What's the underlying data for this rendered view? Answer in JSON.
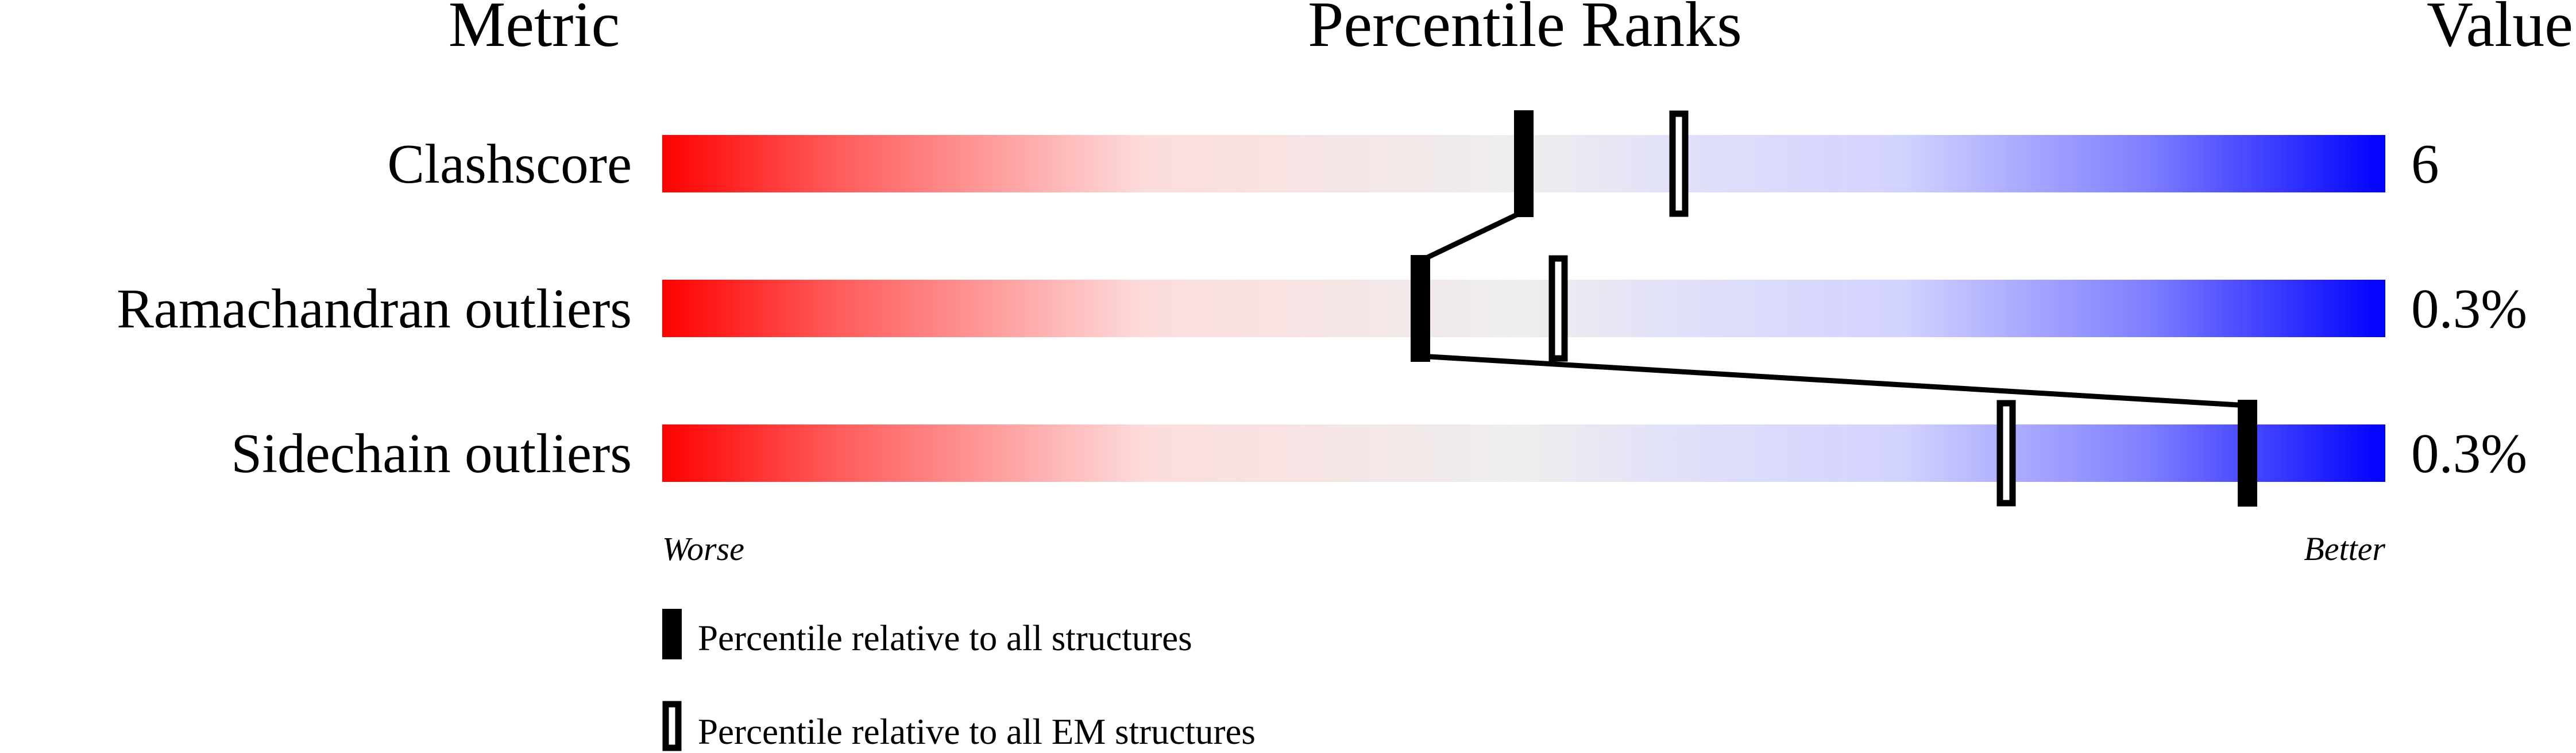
{
  "chart_data": {
    "type": "bar",
    "headers": {
      "metric": "Metric",
      "ranks": "Percentile Ranks",
      "value": "Value"
    },
    "xlim": [
      0,
      100
    ],
    "axis_left_label": "Worse",
    "axis_right_label": "Better",
    "rows": [
      {
        "metric": "Clashscore",
        "value": "6",
        "percentile_all": 50,
        "percentile_em": 59
      },
      {
        "metric": "Ramachandran outliers",
        "value": "0.3%",
        "percentile_all": 44,
        "percentile_em": 52
      },
      {
        "metric": "Sidechain outliers",
        "value": "0.3%",
        "percentile_all": 92,
        "percentile_em": 78
      }
    ],
    "legend": [
      {
        "marker": "filled",
        "label": "Percentile relative to all structures"
      },
      {
        "marker": "open",
        "label": "Percentile relative to all EM structures"
      }
    ],
    "colors": {
      "worse": "#ff0000",
      "middle": "#eeeeee",
      "better": "#0000ff"
    }
  }
}
